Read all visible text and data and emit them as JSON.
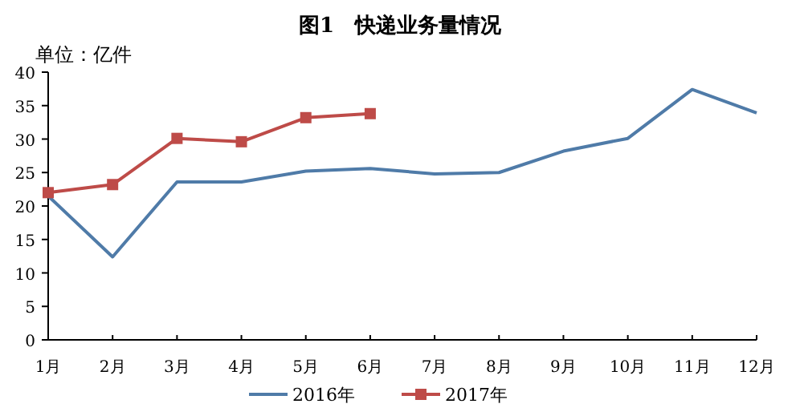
{
  "chart_data": {
    "type": "line",
    "title": "图1　快递业务量情况",
    "ylabel": "单位：亿件",
    "categories": [
      "1月",
      "2月",
      "3月",
      "4月",
      "5月",
      "6月",
      "7月",
      "8月",
      "9月",
      "10月",
      "11月",
      "12月"
    ],
    "ylim": [
      0,
      40
    ],
    "yticks": [
      0,
      5,
      10,
      15,
      20,
      25,
      30,
      35,
      40
    ],
    "grid": false,
    "legend": "bottom",
    "series": [
      {
        "name": "2016年",
        "color": "#4f7ba8",
        "marker": "none",
        "values": [
          21.5,
          12.4,
          23.6,
          23.6,
          25.2,
          25.6,
          24.8,
          25.0,
          28.2,
          30.1,
          37.4,
          33.9
        ]
      },
      {
        "name": "2017年",
        "color": "#be4b48",
        "marker": "square",
        "values": [
          22.0,
          23.2,
          30.1,
          29.6,
          33.2,
          33.8,
          null,
          null,
          null,
          null,
          null,
          null
        ]
      }
    ]
  }
}
